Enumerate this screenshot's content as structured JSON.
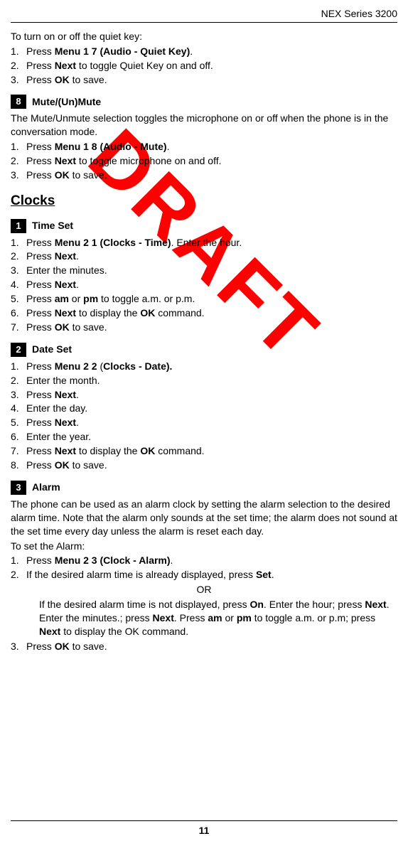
{
  "header": {
    "product": "NEX Series 3200"
  },
  "watermark": "DRAFT",
  "quietKey": {
    "intro": "To turn on or off the quiet key:",
    "steps": [
      {
        "n": "1.",
        "pre": "Press ",
        "bold": "Menu 1 7 (Audio - Quiet Key)",
        "post": "."
      },
      {
        "n": "2.",
        "pre": "Press ",
        "bold": "Next",
        "post": " to toggle Quiet Key on and off."
      },
      {
        "n": "3.",
        "pre": "Press ",
        "bold": "OK",
        "post": " to save."
      }
    ]
  },
  "mute": {
    "badge": "8",
    "title": "Mute/(Un)Mute",
    "intro": "The Mute/Unmute selection toggles the microphone on or off when the phone is in the conversation mode.",
    "steps": [
      {
        "n": "1.",
        "pre": "Press ",
        "bold": "Menu 1 8 (Audio - Mute)",
        "post": "."
      },
      {
        "n": "2.",
        "pre": "Press ",
        "bold": "Next",
        "post": " to toggle microphone on and off."
      },
      {
        "n": "3.",
        "pre": "Press ",
        "bold": "OK",
        "post": " to save."
      }
    ]
  },
  "clocksHeading": "Clocks",
  "timeSet": {
    "badge": "1",
    "title": "Time Set",
    "steps": [
      {
        "n": "1.",
        "html": "Press <b>Menu 2 1 (Clocks - Time)</b>. Enter the hour."
      },
      {
        "n": "2.",
        "html": "Press <b>Next</b>."
      },
      {
        "n": "3.",
        "html": "Enter the minutes."
      },
      {
        "n": "4.",
        "html": "Press <b>Next</b>."
      },
      {
        "n": "5.",
        "html": "Press <b>am</b> or <b>pm</b> to toggle a.m. or p.m."
      },
      {
        "n": "6.",
        "html": "Press <b>Next</b> to display the <b>OK</b> command."
      },
      {
        "n": "7.",
        "html": "Press <b>OK</b> to save."
      }
    ]
  },
  "dateSet": {
    "badge": "2",
    "title": "Date Set",
    "steps": [
      {
        "n": "1.",
        "html": "Press <b>Menu 2 2</b> (<b>Clocks - Date).</b>"
      },
      {
        "n": "2.",
        "html": "Enter the month."
      },
      {
        "n": "3.",
        "html": "Press <b>Next</b>."
      },
      {
        "n": "4.",
        "html": "Enter the day."
      },
      {
        "n": "5.",
        "html": "Press <b>Next</b>."
      },
      {
        "n": "6.",
        "html": "Enter the year."
      },
      {
        "n": "7.",
        "html": "Press <b>Next</b> to display the <b>OK</b> command."
      },
      {
        "n": "8.",
        "html": "Press <b>OK</b> to save."
      }
    ]
  },
  "alarm": {
    "badge": "3",
    "title": "Alarm",
    "intro": "The phone can be used as an alarm clock by setting the alarm selection to the desired alarm time. Note that the alarm only sounds at the set time; the alarm does not sound at the set time every day unless the alarm is reset each day.",
    "intro2": "To set the Alarm:",
    "steps": [
      {
        "n": "1.",
        "html": "Press <b>Menu 2 3 (Clock - Alarm)</b>."
      },
      {
        "n": "2.",
        "html": "If the desired alarm time is already displayed, press <b>Set</b>."
      }
    ],
    "or": "OR",
    "sub": "If the desired alarm time is not displayed, press <b>On</b>. Enter the hour; press <b>Next</b>. Enter the minutes.; press <b>Next</b>. Press <b>am</b> or <b>pm</b> to toggle a.m. or p.m; press <b>Next</b> to display the OK command.",
    "step3": {
      "n": "3.",
      "html": "Press <b>OK</b> to save."
    }
  },
  "pageNumber": "11"
}
